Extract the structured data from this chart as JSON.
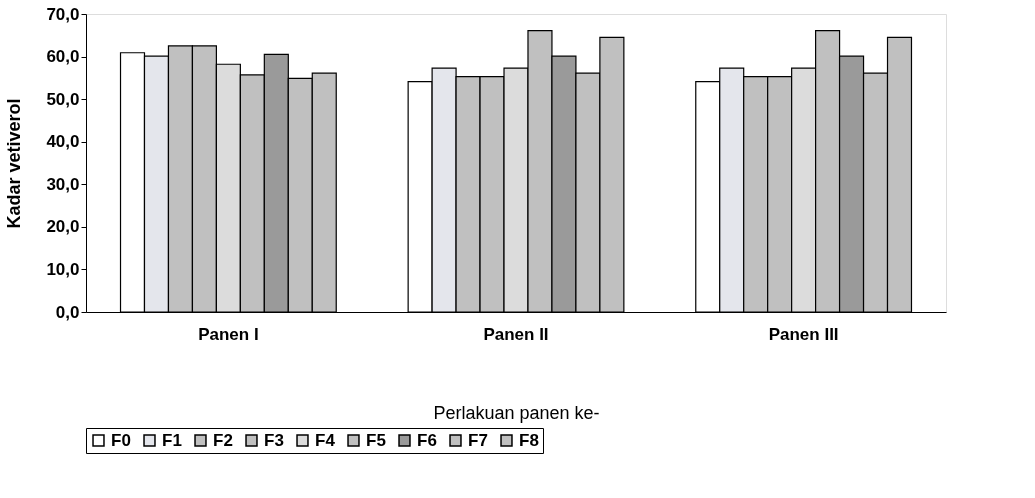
{
  "chart_data": {
    "type": "bar",
    "ylabel": "Kadar vetiverol",
    "xlabel": "Perlakuan panen ke-",
    "categories": [
      "Panen I",
      "Panen II",
      "Panen III"
    ],
    "series": [
      {
        "name": "F0",
        "color": "#ffffff",
        "values": [
          60.9,
          54.1,
          54.1
        ]
      },
      {
        "name": "F1",
        "color": "#e4e6ec",
        "values": [
          60.1,
          57.3,
          57.3
        ]
      },
      {
        "name": "F2",
        "color": "#c0c0c0",
        "values": [
          62.5,
          55.3,
          55.3
        ]
      },
      {
        "name": "F3",
        "color": "#c0c0c0",
        "values": [
          62.5,
          55.3,
          55.3
        ]
      },
      {
        "name": "F4",
        "color": "#dcdcdc",
        "values": [
          58.2,
          57.3,
          57.3
        ]
      },
      {
        "name": "F5",
        "color": "#c0c0c0",
        "values": [
          55.7,
          66.1,
          66.1
        ]
      },
      {
        "name": "F6",
        "color": "#9a9a9a",
        "values": [
          60.5,
          60.1,
          60.1
        ]
      },
      {
        "name": "F7",
        "color": "#c0c0c0",
        "values": [
          54.9,
          56.1,
          56.1
        ]
      },
      {
        "name": "F8",
        "color": "#c0c0c0",
        "values": [
          56.1,
          64.5,
          64.5
        ]
      }
    ],
    "ylim": [
      0,
      70
    ],
    "yticks": [
      {
        "value": 0,
        "label": "0,0"
      },
      {
        "value": 10,
        "label": "10,0"
      },
      {
        "value": 20,
        "label": "20,0"
      },
      {
        "value": 30,
        "label": "30,0"
      },
      {
        "value": 40,
        "label": "40,0"
      },
      {
        "value": 50,
        "label": "50,0"
      },
      {
        "value": 60,
        "label": "60,0"
      },
      {
        "value": 70,
        "label": "70,0"
      }
    ],
    "grid": false,
    "legend": "bottom"
  }
}
